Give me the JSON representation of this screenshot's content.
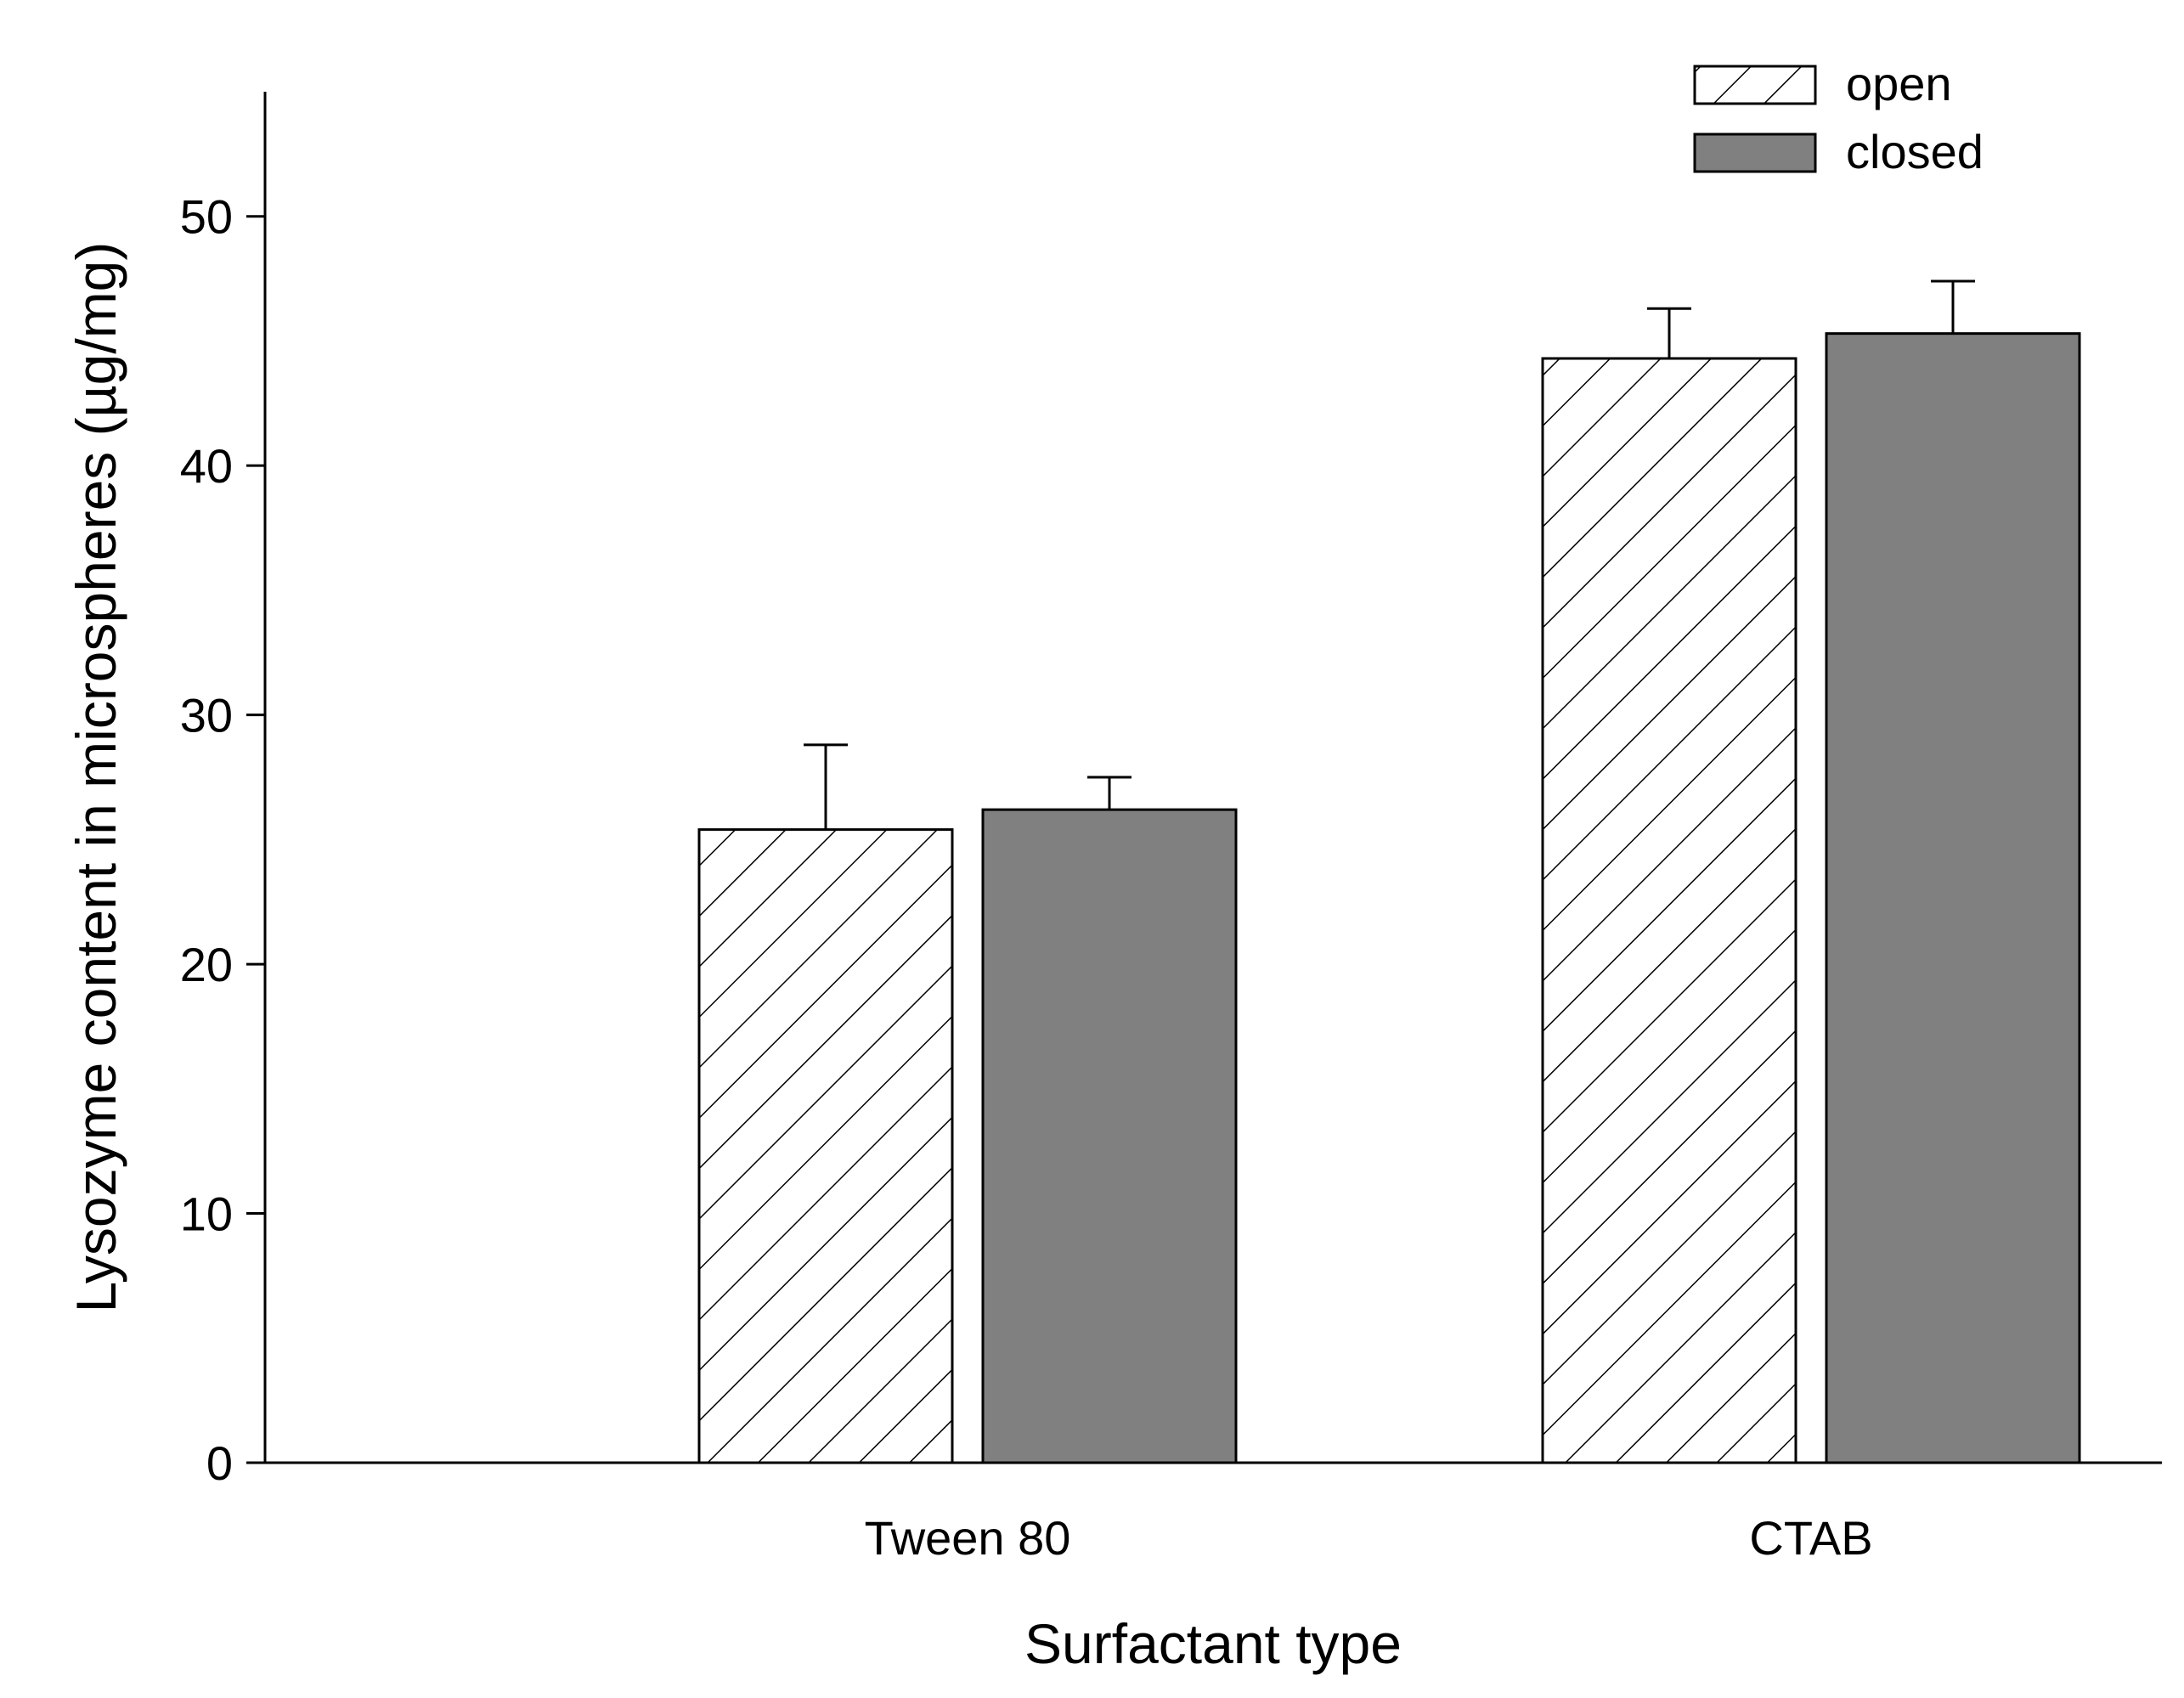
{
  "chart_data": {
    "type": "bar",
    "title": "",
    "xlabel": "Surfactant type",
    "ylabel": "Lysozyme content in microspheres (µg/mg)",
    "ylim": [
      0,
      55
    ],
    "yticks": [
      0,
      10,
      20,
      30,
      40,
      50
    ],
    "ytick_labels": [
      "0",
      "10",
      "20",
      "30",
      "40",
      "50"
    ],
    "grid": false,
    "legend_position": "top-right",
    "categories": [
      "Tween 80",
      "CTAB"
    ],
    "series": [
      {
        "name": "open",
        "pattern": "hatched",
        "color": "#ffffff",
        "values": [
          25.4,
          44.3
        ],
        "errors": [
          3.4,
          2.0
        ]
      },
      {
        "name": "closed",
        "pattern": "solid",
        "color": "#808080",
        "values": [
          26.2,
          45.3
        ],
        "errors": [
          1.3,
          2.1
        ]
      }
    ]
  }
}
